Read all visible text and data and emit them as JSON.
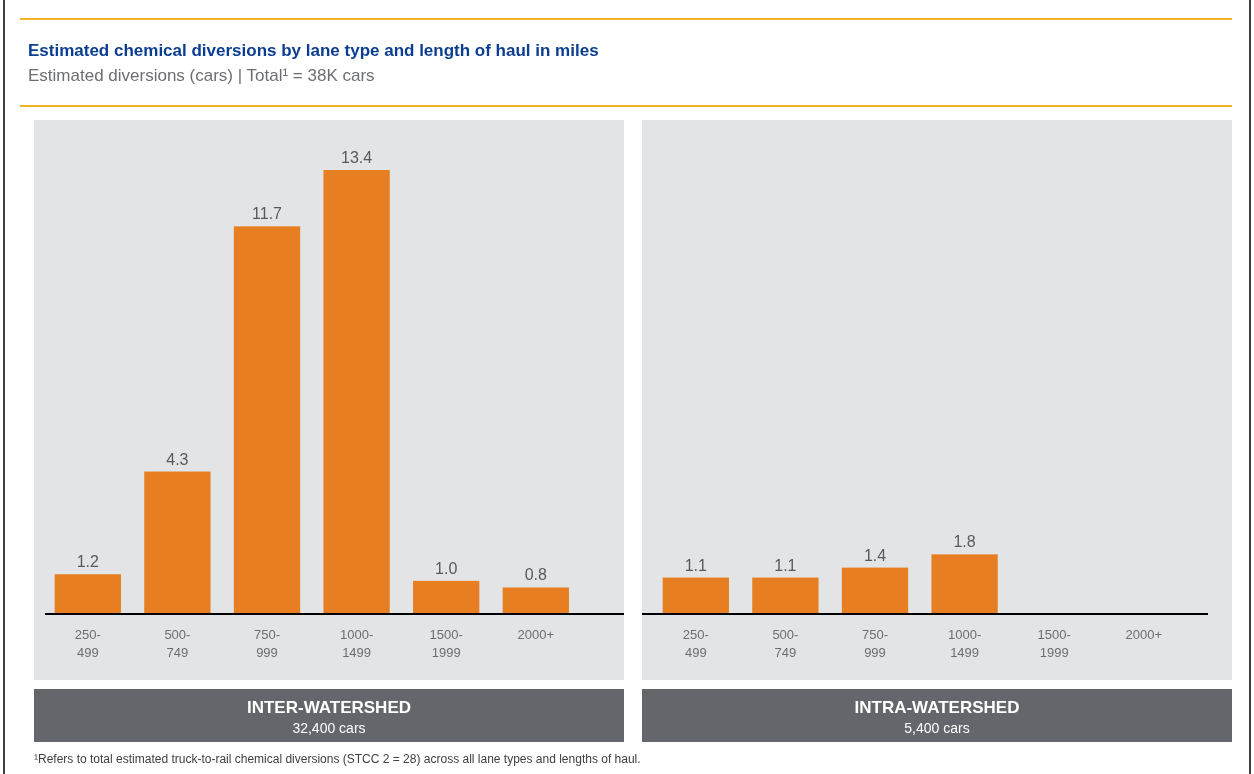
{
  "chart_data": [
    {
      "type": "bar",
      "title": "Estimated chemical diversions by lane type and length of haul in miles",
      "subtitle": "Estimated diversions (cars) | Total¹ = 38K cars",
      "xlabel": "INTER-WATERSHED",
      "annotations": [
        "32,400 cars"
      ],
      "categories": [
        "250-499",
        "500-749",
        "750-999",
        "1000-1499",
        "1500-1999",
        "2000+"
      ],
      "values": [
        1.2,
        4.3,
        11.7,
        13.4,
        1.0,
        0.8
      ],
      "value_labels": [
        "1.2",
        "4.3",
        "11.7",
        "13.4",
        "1.0",
        "0.8"
      ],
      "color": "#e87e22"
    },
    {
      "type": "bar",
      "xlabel": "INTRA-WATERSHED",
      "annotations": [
        "5,400 cars",
        "¹Refers to total estimated truck-to-rail chemical diversions (STCC 2 = 28) across all lane types and lengths of haul."
      ],
      "categories": [
        "250-499",
        "500-749",
        "750-999",
        "1000-1499",
        "1500-1999",
        "2000+"
      ],
      "values": [
        1.1,
        1.1,
        1.4,
        1.8,
        null,
        null
      ],
      "color": "#e87e22",
      "data_labels": true
    }
  ]
}
